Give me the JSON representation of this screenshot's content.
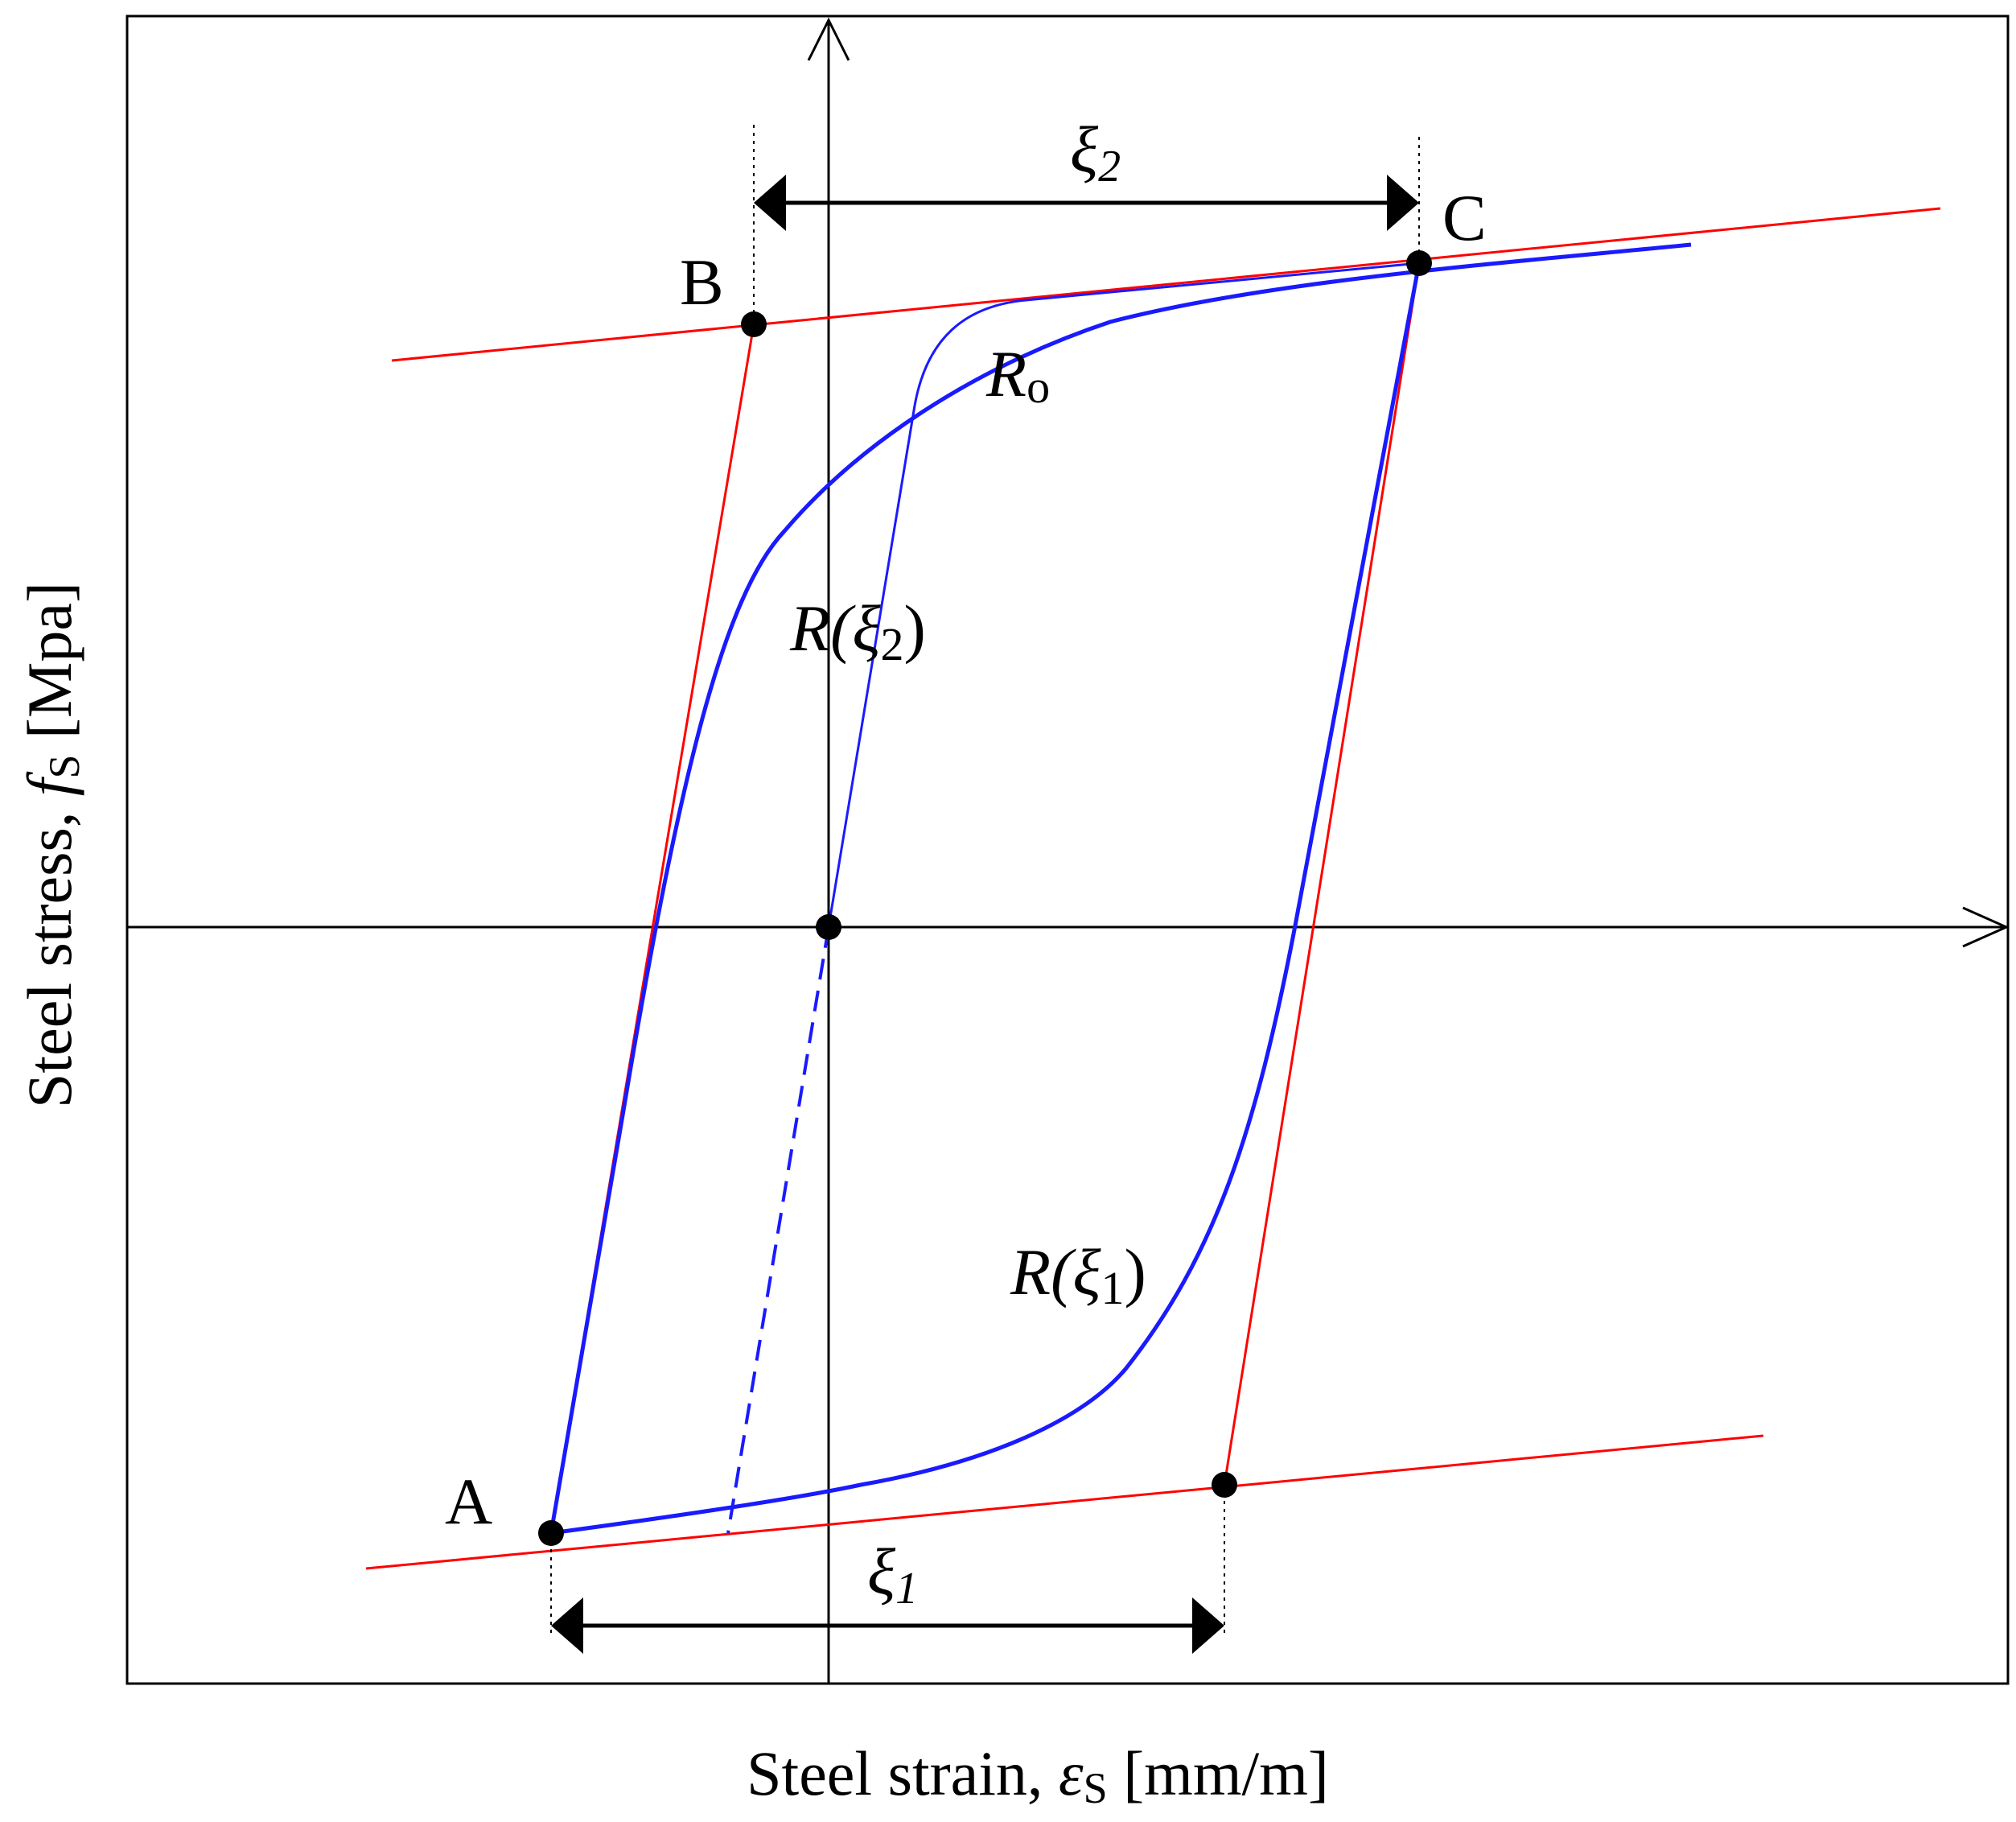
{
  "axes": {
    "x_label": "Steel strain, ",
    "x_symbol": "ε",
    "x_subscript": "S",
    "x_unit": " [mm/m]",
    "y_label": "Steel stress, ",
    "y_symbol": "f",
    "y_subscript": "S",
    "y_unit": " [Mpa]"
  },
  "points": {
    "A": "A",
    "B": "B",
    "C": "C"
  },
  "dimensions": {
    "xi1_symbol": "ξ",
    "xi1_sub": "1",
    "xi2_symbol": "ξ",
    "xi2_sub": "2"
  },
  "curve_labels": {
    "r0_symbol": "R",
    "r0_sub": "o",
    "r_xi2_prefix": "R(",
    "r_xi2_symbol": "ξ",
    "r_xi2_sub": "2",
    "r_xi2_suffix": ")",
    "r_xi1_prefix": "R(",
    "r_xi1_symbol": "ξ",
    "r_xi1_sub": "1",
    "r_xi1_suffix": ")"
  },
  "colors": {
    "curve": "#1a1aff",
    "asymptote": "#ff0000",
    "axis": "#000000"
  }
}
